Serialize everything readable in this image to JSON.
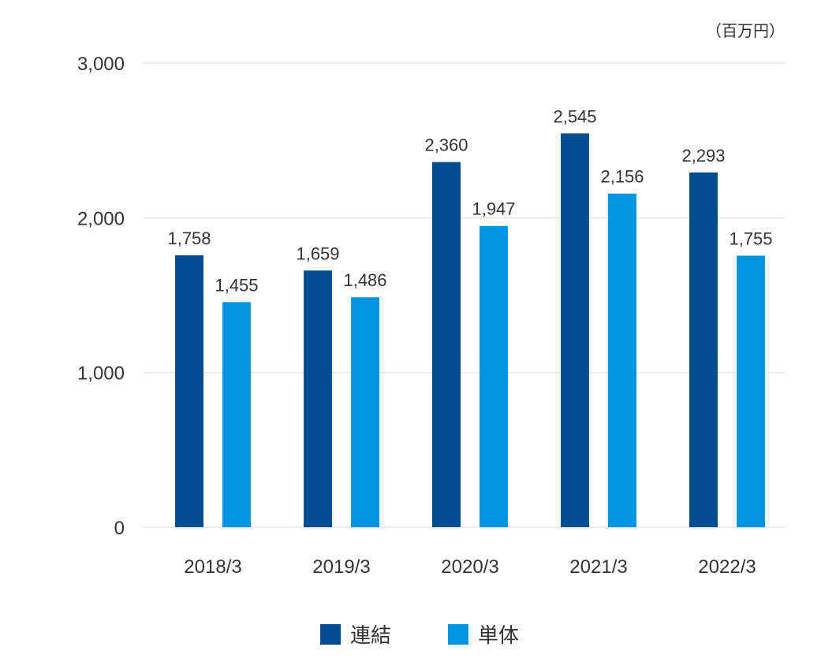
{
  "chart_data": {
    "type": "bar",
    "title": "",
    "unit_label": "（百万円）",
    "xlabel": "",
    "ylabel": "",
    "ylim": [
      0,
      3000
    ],
    "yticks": [
      0,
      1000,
      2000,
      3000
    ],
    "ytick_labels": [
      "0",
      "1,000",
      "2,000",
      "3,000"
    ],
    "categories": [
      "2018/3",
      "2019/3",
      "2020/3",
      "2021/3",
      "2022/3"
    ],
    "series": [
      {
        "name": "連結",
        "color": "#004d8f",
        "values": [
          1758,
          1659,
          2360,
          2545,
          2293
        ],
        "labels": [
          "1,758",
          "1,659",
          "2,360",
          "2,545",
          "2,293"
        ]
      },
      {
        "name": "単体",
        "color": "#0095e0",
        "values": [
          1455,
          1486,
          1947,
          2156,
          1755
        ],
        "labels": [
          "1,455",
          "1,486",
          "1,947",
          "2,156",
          "1,755"
        ]
      }
    ],
    "grid": true,
    "legend_position": "bottom-center"
  }
}
